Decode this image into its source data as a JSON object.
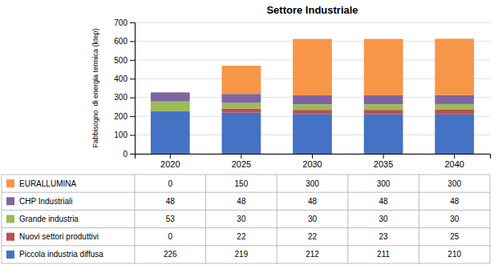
{
  "chart_data": {
    "type": "bar",
    "stacked": true,
    "grid": true,
    "title": "Settore Industriale",
    "ylabel": "Fabbisogno  di energia termica (ktep)",
    "categories": [
      "2020",
      "2025",
      "2030",
      "2035",
      "2040"
    ],
    "series": [
      {
        "name": "Piccola industria diffusa",
        "color": "#4472C4",
        "values": [
          226,
          219,
          212,
          211,
          210
        ]
      },
      {
        "name": "Nuovi settori produttivi",
        "color": "#C0504D",
        "values": [
          0,
          22,
          22,
          23,
          25
        ]
      },
      {
        "name": "Grande industria",
        "color": "#9BBB59",
        "values": [
          53,
          30,
          30,
          30,
          30
        ]
      },
      {
        "name": "CHP Industriali",
        "color": "#8064A2",
        "values": [
          48,
          48,
          48,
          48,
          48
        ]
      },
      {
        "name": "EURALLUMINA",
        "color": "#F79646",
        "values": [
          0,
          150,
          300,
          300,
          300
        ]
      }
    ],
    "ylim": [
      0,
      700
    ],
    "yticks": [
      0,
      100,
      200,
      300,
      400,
      500,
      600,
      700
    ]
  }
}
